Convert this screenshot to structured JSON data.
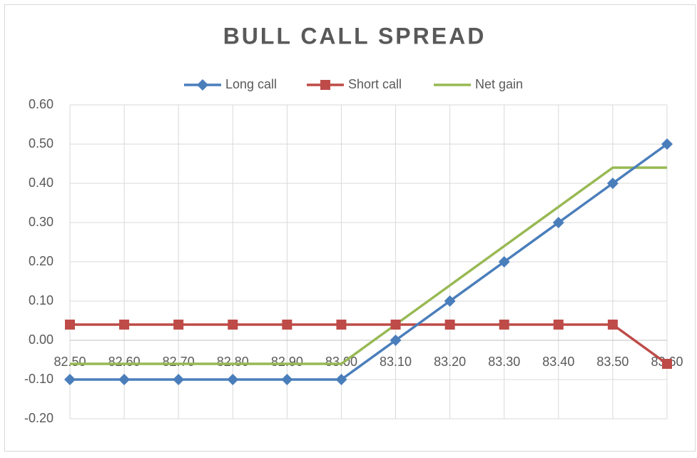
{
  "chart_data": {
    "type": "line",
    "title": "BULL CALL SPREAD",
    "categories": [
      "82.50",
      "82.60",
      "82.70",
      "82.80",
      "82.90",
      "83.00",
      "83.10",
      "83.20",
      "83.30",
      "83.40",
      "83.50",
      "83.60"
    ],
    "series": [
      {
        "name": "Long call",
        "color": "#4a7ebb",
        "marker": "diamond",
        "values": [
          -0.1,
          -0.1,
          -0.1,
          -0.1,
          -0.1,
          -0.1,
          0,
          0.1,
          0.2,
          0.3,
          0.4,
          0.5
        ]
      },
      {
        "name": "Short call",
        "color": "#be4b48",
        "marker": "square",
        "values": [
          0.04,
          0.04,
          0.04,
          0.04,
          0.04,
          0.04,
          0.04,
          0.04,
          0.04,
          0.04,
          0.04,
          -0.06
        ]
      },
      {
        "name": "Net gain",
        "color": "#98b954",
        "marker": "none",
        "values": [
          -0.06,
          -0.06,
          -0.06,
          -0.06,
          -0.06,
          -0.06,
          0.04,
          0.14,
          0.24,
          0.34,
          0.44,
          0.44
        ]
      }
    ],
    "ylim": [
      -0.2,
      0.6
    ],
    "yticks": [
      {
        "value": -0.2,
        "label": "-0.20"
      },
      {
        "value": -0.1,
        "label": "-0.10"
      },
      {
        "value": 0,
        "label": "0.00"
      },
      {
        "value": 0.1,
        "label": "0.10"
      },
      {
        "value": 0.2,
        "label": "0.20"
      },
      {
        "value": 0.3,
        "label": "0.30"
      },
      {
        "value": 0.4,
        "label": "0.40"
      },
      {
        "value": 0.5,
        "label": "0.50"
      },
      {
        "value": 0.6,
        "label": "0.60"
      }
    ],
    "grid": true,
    "legend": "top"
  }
}
